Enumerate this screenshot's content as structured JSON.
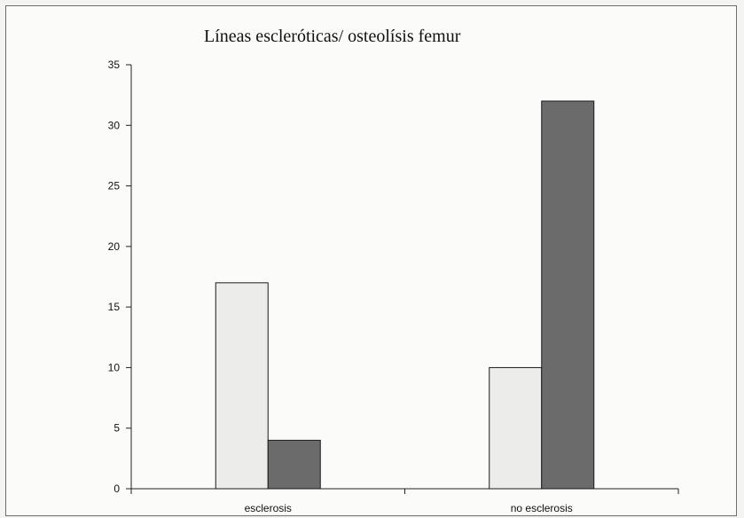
{
  "chart_data": {
    "type": "bar",
    "title": "Líneas escleróticas/ osteolísis femur",
    "categories": [
      "esclerosis",
      "no esclerosis"
    ],
    "series": [
      {
        "values": [
          17,
          10
        ],
        "color": "#ececea"
      },
      {
        "values": [
          4,
          32
        ],
        "color": "#6b6b6b"
      }
    ],
    "ylim": [
      0,
      35
    ],
    "yticks": [
      0,
      5,
      10,
      15,
      20,
      25,
      30,
      35
    ],
    "grid": false,
    "legend": "none"
  }
}
